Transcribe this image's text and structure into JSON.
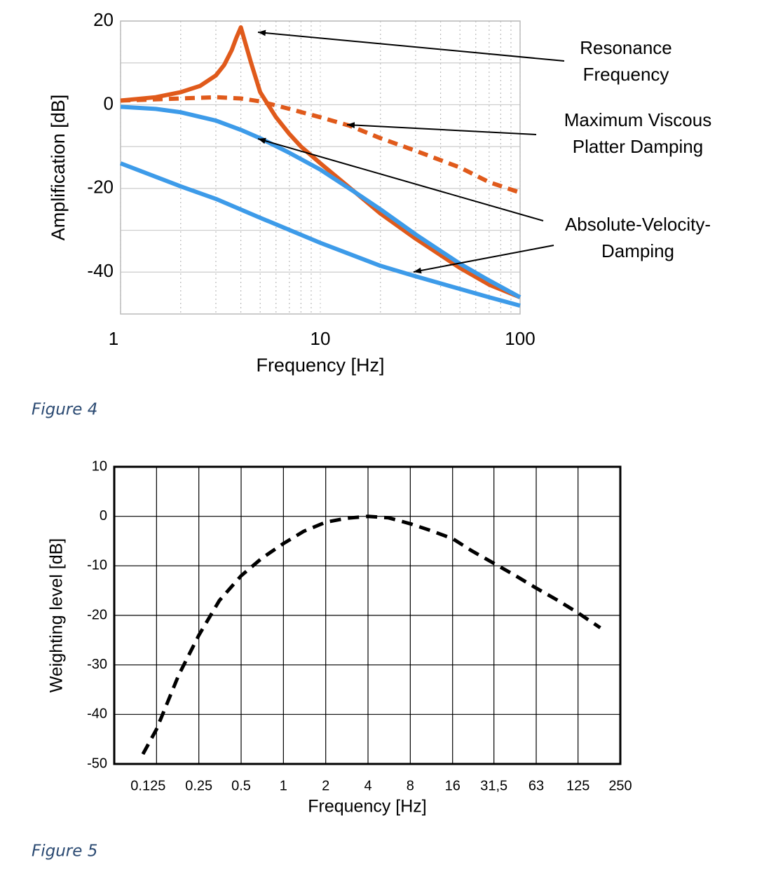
{
  "chart_data": [
    {
      "type": "line",
      "caption": "Figure 4",
      "xlabel": "Frequency [Hz]",
      "ylabel": "Amplification [dB]",
      "xscale": "log",
      "xlim": [
        1,
        100
      ],
      "ylim": [
        -50,
        20
      ],
      "xticks": [
        1,
        10,
        100
      ],
      "yticks": [
        -40,
        -20,
        0,
        20
      ],
      "minor_xticks": [
        2,
        3,
        4,
        5,
        6,
        7,
        8,
        9,
        20,
        30,
        40,
        50,
        60,
        70,
        80,
        90
      ],
      "minor_yticks": [
        -30,
        -10,
        10
      ],
      "grid": true,
      "annotations": [
        [
          "Resonance",
          "Frequency"
        ],
        [
          "Maximum Viscous",
          "Platter Damping"
        ],
        [
          "Absolute-Velocity-",
          "Damping"
        ]
      ],
      "series": [
        {
          "color": "#e05a1b",
          "style": "solid",
          "x": [
            1,
            1.5,
            2,
            2.5,
            3,
            3.3,
            3.6,
            3.8,
            4,
            4.2,
            4.5,
            5,
            6,
            7,
            8,
            10,
            15,
            20,
            30,
            50,
            70,
            100
          ],
          "values": [
            1,
            1.8,
            3,
            4.5,
            7,
            9.5,
            13,
            16,
            18.5,
            15,
            10,
            3,
            -3,
            -7,
            -10,
            -14,
            -21,
            -26,
            -32,
            -39,
            -43,
            -46
          ]
        },
        {
          "color": "#e05a1b",
          "style": "dashed",
          "x": [
            1,
            2,
            3,
            4,
            5,
            7,
            10,
            14,
            20,
            30,
            50,
            70,
            100
          ],
          "values": [
            1,
            1.5,
            1.8,
            1.5,
            0.8,
            -1,
            -3,
            -5,
            -8,
            -11,
            -15,
            -18.5,
            -21
          ]
        },
        {
          "color": "#3d9be9",
          "style": "solid",
          "x": [
            1,
            1.5,
            2,
            3,
            4,
            5,
            7,
            10,
            15,
            20,
            30,
            50,
            70,
            100
          ],
          "values": [
            -0.5,
            -1,
            -1.8,
            -3.8,
            -6,
            -8,
            -11.5,
            -15.5,
            -21,
            -25,
            -31,
            -38,
            -42,
            -46
          ]
        },
        {
          "color": "#3d9be9",
          "style": "solid",
          "x": [
            1,
            2,
            3,
            5,
            10,
            20,
            30,
            50,
            70,
            100
          ],
          "values": [
            -14,
            -19.5,
            -22.5,
            -27,
            -33,
            -38.5,
            -41,
            -44,
            -46,
            -48
          ]
        }
      ]
    },
    {
      "type": "line",
      "caption": "Figure 5",
      "xlabel": "Frequency [Hz]",
      "ylabel": "Weighting level [dB]",
      "xscale": "log",
      "xlim": [
        0.0625,
        250
      ],
      "ylim": [
        -50,
        10
      ],
      "xticks": [
        0.125,
        0.25,
        0.5,
        1,
        2,
        4,
        8,
        16,
        {
          "value": 31.5,
          "label": "31,5"
        },
        63,
        125,
        250
      ],
      "yticks": [
        -50,
        -40,
        -30,
        -20,
        -10,
        0,
        10
      ],
      "grid": true,
      "series": [
        {
          "color": "#000000",
          "style": "dashed",
          "x": [
            0.1,
            0.125,
            0.18,
            0.25,
            0.35,
            0.5,
            0.7,
            1,
            1.4,
            2,
            2.8,
            4,
            5.6,
            8,
            11,
            16,
            22,
            31.5,
            45,
            63,
            90,
            125,
            180
          ],
          "values": [
            -48,
            -43,
            -32,
            -24,
            -17,
            -12,
            -8.5,
            -5.5,
            -3,
            -1.2,
            -0.4,
            0,
            -0.3,
            -1.5,
            -2.8,
            -4.5,
            -7,
            -9.5,
            -12,
            -14.5,
            -17,
            -19.5,
            -22.5
          ]
        }
      ]
    }
  ]
}
